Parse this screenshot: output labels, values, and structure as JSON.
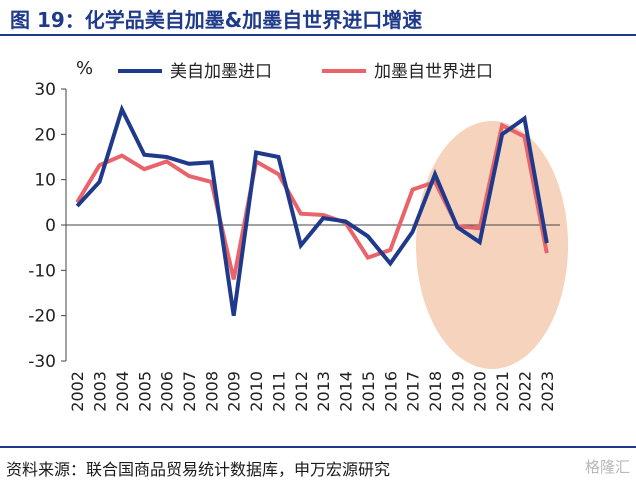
{
  "title": "图 19：化学品美自加墨&加墨自世界进口增速",
  "source": "资料来源：联合国商品贸易统计数据库，申万宏源研究",
  "watermark": "格隆汇",
  "colors": {
    "title": "#1f3a8a",
    "series_us_to_canmex": "#1f3a8a",
    "series_world_to_canmex": "#e8646a",
    "highlight": "#f6d3bd",
    "axis": "#444444"
  },
  "chart_data": {
    "type": "line",
    "ylabel": "%",
    "ylim": [
      -30,
      30
    ],
    "yticks": [
      -30,
      -20,
      -10,
      0,
      10,
      20,
      30
    ],
    "grid": false,
    "legend_position": "top",
    "x": [
      "2002",
      "2003",
      "2004",
      "2005",
      "2006",
      "2007",
      "2008",
      "2009",
      "2010",
      "2011",
      "2012",
      "2013",
      "2014",
      "2015",
      "2016",
      "2017",
      "2018",
      "2019",
      "2020",
      "2021",
      "2022",
      "2023"
    ],
    "series": [
      {
        "name": "美自加墨进口",
        "values": [
          4.2,
          9.5,
          25.5,
          15.5,
          15.0,
          13.5,
          13.8,
          -20.0,
          16.0,
          15.0,
          -4.5,
          1.5,
          0.8,
          -2.5,
          -8.5,
          -1.5,
          11.2,
          -0.5,
          -3.8,
          20.0,
          23.5,
          -4.0
        ]
      },
      {
        "name": "加墨自世界进口",
        "values": [
          5.0,
          13.2,
          15.3,
          12.3,
          14.0,
          10.8,
          9.5,
          -12.0,
          14.0,
          11.2,
          2.5,
          2.2,
          0.5,
          -7.2,
          -5.5,
          7.8,
          9.5,
          -0.3,
          -0.7,
          22.0,
          19.5,
          -6.2
        ]
      }
    ],
    "highlight_range": [
      "2018",
      "2023"
    ]
  }
}
